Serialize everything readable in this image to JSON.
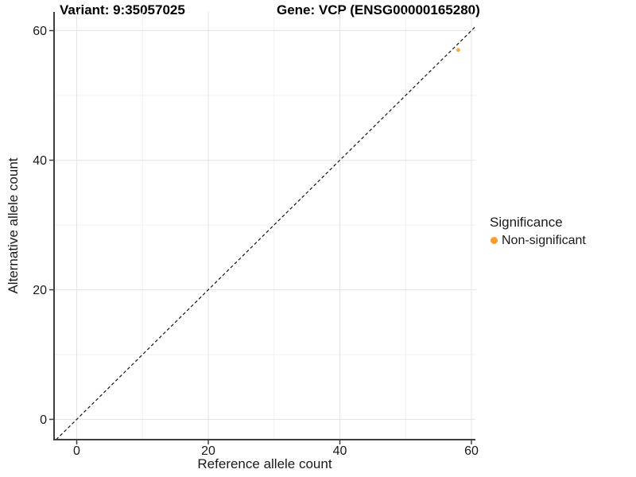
{
  "header": {
    "variant_title": "Variant: 9:35057025",
    "gene_title": "Gene: VCP (ENSG00000165280)"
  },
  "chart_data": {
    "type": "scatter",
    "title_left": "Variant: 9:35057025",
    "title_right": "Gene: VCP (ENSG00000165280)",
    "xlabel": "Reference allele count",
    "ylabel": "Alternative allele count",
    "xlim": [
      -3.4,
      60.6
    ],
    "ylim": [
      -3.1,
      62.9
    ],
    "x_ticks": [
      0,
      20,
      40,
      60
    ],
    "y_ticks": [
      0,
      20,
      40,
      60
    ],
    "x_minor_ticks": [
      10,
      30,
      50
    ],
    "y_minor_ticks": [
      10,
      30,
      50
    ],
    "grid": "major-and-minor",
    "reference_line": {
      "kind": "identity-abline",
      "style": "dashed",
      "color": "#111111"
    },
    "series": [
      {
        "name": "Non-significant",
        "color": "#FC9D23",
        "points": [
          {
            "x": 58,
            "y": 57
          }
        ]
      }
    ],
    "legend": {
      "position": "right",
      "title": "Significance",
      "items": [
        {
          "label": "Non-significant",
          "color": "#FC9D23"
        }
      ]
    }
  },
  "colors": {
    "background": "#ffffff",
    "axis_line": "#3f3f3f",
    "tick_mark": "#3f3f3f",
    "tick_label": "#1a1a1a",
    "grid_major": "#e4e4e4",
    "grid_minor": "#f2f2f2",
    "point_orange": "#FC9D23",
    "title_text": "#000000"
  }
}
